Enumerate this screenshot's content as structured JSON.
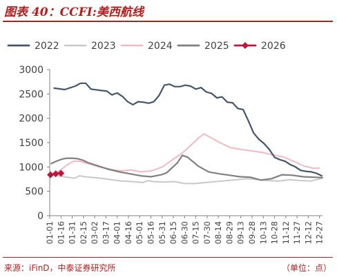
{
  "figure": {
    "title": "图表 40：CCFI:美西航线",
    "source": "来源：iFinD，中泰证券研究所",
    "unit": "（单位：点）"
  },
  "chart_data": {
    "type": "line",
    "x_ticks": [
      "01-01",
      "01-16",
      "01-31",
      "02-15",
      "03-02",
      "03-17",
      "04-01",
      "04-16",
      "05-01",
      "05-16",
      "05-31",
      "06-15",
      "06-30",
      "07-15",
      "07-30",
      "08-14",
      "08-29",
      "09-13",
      "09-28",
      "10-13",
      "10-28",
      "11-12",
      "11-27",
      "12-12",
      "12-27"
    ],
    "x_range": [
      "01-01",
      "12-31"
    ],
    "ylim": [
      0,
      3000
    ],
    "y_ticks": [
      0,
      500,
      1000,
      1500,
      2000,
      2500,
      3000
    ],
    "grid": false,
    "legend_position": "top",
    "series": [
      {
        "name": "2022",
        "color": "#44546a",
        "width": 2.2,
        "x": [
          "01-07",
          "01-21",
          "02-04",
          "02-11",
          "02-18",
          "02-25",
          "03-11",
          "03-18",
          "03-25",
          "04-01",
          "04-08",
          "04-15",
          "04-22",
          "04-29",
          "05-06",
          "05-13",
          "05-20",
          "05-27",
          "06-03",
          "06-10",
          "06-17",
          "06-24",
          "07-01",
          "07-08",
          "07-15",
          "07-22",
          "07-29",
          "08-05",
          "08-12",
          "08-19",
          "08-26",
          "09-02",
          "09-09",
          "09-16",
          "09-23",
          "09-30",
          "10-07",
          "10-14",
          "10-21",
          "10-28",
          "11-04",
          "11-11",
          "11-18",
          "11-25",
          "12-02",
          "12-09",
          "12-16",
          "12-23",
          "12-30"
        ],
        "y": [
          2620,
          2590,
          2660,
          2720,
          2720,
          2600,
          2570,
          2560,
          2480,
          2520,
          2450,
          2340,
          2280,
          2340,
          2330,
          2310,
          2340,
          2470,
          2680,
          2700,
          2650,
          2650,
          2680,
          2660,
          2600,
          2630,
          2540,
          2510,
          2420,
          2440,
          2330,
          2320,
          2200,
          2180,
          1950,
          1700,
          1570,
          1480,
          1360,
          1200,
          1150,
          1120,
          1050,
          1000,
          930,
          910,
          900,
          870,
          820
        ]
      },
      {
        "name": "2023",
        "color": "#c8c8c8",
        "width": 2,
        "x": [
          "01-06",
          "01-20",
          "02-03",
          "02-10",
          "02-17",
          "02-24",
          "03-10",
          "03-24",
          "04-07",
          "04-21",
          "05-05",
          "05-12",
          "05-19",
          "06-02",
          "06-16",
          "06-30",
          "07-14",
          "07-28",
          "08-11",
          "08-25",
          "09-08",
          "09-22",
          "10-06",
          "10-20",
          "11-03",
          "11-17",
          "12-01",
          "12-15",
          "12-29"
        ],
        "y": [
          830,
          800,
          770,
          820,
          800,
          790,
          770,
          740,
          710,
          700,
          680,
          720,
          700,
          690,
          700,
          660,
          660,
          680,
          700,
          720,
          740,
          760,
          740,
          720,
          710,
          740,
          720,
          710,
          760
        ]
      },
      {
        "name": "2024",
        "color": "#f4b8c3",
        "width": 2,
        "x": [
          "01-05",
          "01-12",
          "01-19",
          "01-26",
          "02-02",
          "02-09",
          "02-23",
          "03-08",
          "03-22",
          "04-05",
          "04-19",
          "05-03",
          "05-17",
          "05-31",
          "06-14",
          "06-28",
          "07-12",
          "07-19",
          "07-26",
          "08-02",
          "08-09",
          "08-16",
          "08-30",
          "09-13",
          "09-27",
          "10-11",
          "10-25",
          "11-08",
          "11-22",
          "12-06",
          "12-20",
          "12-27"
        ],
        "y": [
          820,
          900,
          980,
          1060,
          1120,
          1120,
          1060,
          1000,
          960,
          920,
          940,
          900,
          920,
          1000,
          1150,
          1300,
          1500,
          1600,
          1680,
          1620,
          1560,
          1500,
          1400,
          1360,
          1330,
          1300,
          1250,
          1210,
          1120,
          1020,
          970,
          980
        ]
      },
      {
        "name": "2025",
        "color": "#7f7f7f",
        "width": 2.2,
        "x": [
          "01-03",
          "01-10",
          "01-17",
          "01-24",
          "01-31",
          "02-07",
          "02-14",
          "02-21",
          "03-07",
          "03-21",
          "04-04",
          "04-18",
          "05-02",
          "05-16",
          "05-30",
          "06-06",
          "06-13",
          "06-20",
          "06-27",
          "07-04",
          "07-18",
          "08-01",
          "08-15",
          "08-29",
          "09-12",
          "09-26",
          "10-10",
          "10-24",
          "11-07",
          "11-21",
          "12-05",
          "12-19",
          "12-31"
        ],
        "y": [
          1070,
          1120,
          1160,
          1180,
          1180,
          1170,
          1140,
          1090,
          1020,
          950,
          900,
          860,
          820,
          800,
          840,
          880,
          980,
          1080,
          1240,
          1200,
          1020,
          900,
          860,
          830,
          800,
          790,
          730,
          760,
          840,
          830,
          800,
          790,
          780
        ]
      },
      {
        "name": "2026",
        "color": "#c0143c",
        "width": 2.2,
        "marker": "diamond",
        "x": [
          "01-02",
          "01-09",
          "01-16"
        ],
        "y": [
          840,
          860,
          870
        ]
      }
    ]
  }
}
